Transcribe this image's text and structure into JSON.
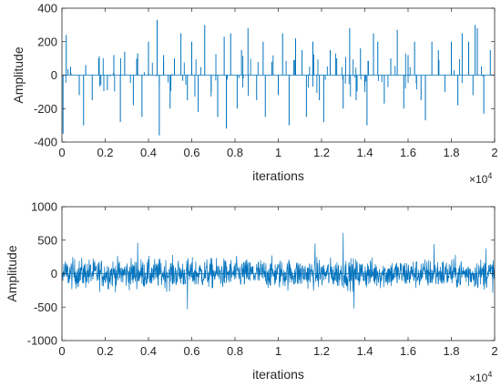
{
  "chart_data": [
    {
      "type": "line",
      "style": "stem-like signal (sparse spikes)",
      "title": "",
      "xlabel": "iterations",
      "ylabel": "Amplitude",
      "x_exponent_base": "×10",
      "x_exponent": "4",
      "xlim": [
        0,
        2
      ],
      "ylim": [
        -400,
        400
      ],
      "xticks": [
        "0",
        "0.2",
        "0.4",
        "0.6",
        "0.8",
        "1",
        "1.2",
        "1.4",
        "1.6",
        "1.8",
        "2"
      ],
      "yticks": [
        "400",
        "200",
        "0",
        "-200",
        "-400"
      ],
      "color": "#0072BD",
      "grid": false,
      "series": [
        {
          "x": [
            0.005,
            0.02,
            0.04,
            0.08,
            0.1,
            0.11,
            0.14,
            0.17,
            0.18,
            0.21,
            0.24,
            0.27,
            0.29,
            0.33,
            0.35,
            0.37,
            0.4,
            0.44,
            0.45,
            0.47,
            0.5,
            0.52,
            0.55,
            0.58,
            0.6,
            0.63,
            0.66,
            0.69,
            0.72,
            0.75,
            0.76,
            0.78,
            0.81,
            0.83,
            0.86,
            0.9,
            0.93,
            0.94,
            0.97,
            1.0,
            1.02,
            1.05,
            1.08,
            1.11,
            1.13,
            1.16,
            1.19,
            1.21,
            1.24,
            1.27,
            1.3,
            1.33,
            1.36,
            1.38,
            1.41,
            1.44,
            1.46,
            1.49,
            1.52,
            1.55,
            1.58,
            1.6,
            1.63,
            1.66,
            1.68,
            1.71,
            1.74,
            1.77,
            1.8,
            1.83,
            1.85,
            1.88,
            1.9,
            1.91,
            1.92,
            1.95,
            1.98
          ],
          "y": [
            -350,
            240,
            50,
            -120,
            -300,
            60,
            -150,
            100,
            -60,
            -90,
            120,
            -280,
            140,
            -180,
            130,
            -250,
            200,
            330,
            -360,
            120,
            -200,
            100,
            250,
            -150,
            200,
            -220,
            300,
            -100,
            -250,
            230,
            -320,
            250,
            -200,
            150,
            280,
            -150,
            200,
            -250,
            80,
            -120,
            250,
            -300,
            220,
            150,
            -250,
            200,
            -150,
            -280,
            150,
            100,
            -200,
            280,
            -150,
            160,
            -300,
            250,
            200,
            -170,
            100,
            270,
            -200,
            120,
            200,
            -150,
            -270,
            200,
            150,
            -100,
            200,
            -180,
            250,
            200,
            -120,
            300,
            280,
            -230,
            150
          ]
        }
      ]
    },
    {
      "type": "line",
      "style": "dense noise signal",
      "title": "",
      "xlabel": "iterations",
      "ylabel": "Amplitude",
      "x_exponent_base": "×10",
      "x_exponent": "4",
      "xlim": [
        0,
        2
      ],
      "ylim": [
        -1000,
        1000
      ],
      "xticks": [
        "0",
        "0.2",
        "0.4",
        "0.6",
        "0.8",
        "1",
        "1.2",
        "1.4",
        "1.6",
        "1.8",
        "2"
      ],
      "yticks": [
        "1000",
        "500",
        "0",
        "-500",
        "-1000"
      ],
      "color": "#0072BD",
      "grid": false,
      "series": [
        {
          "x_range": [
            0,
            2
          ],
          "y_approx_range": [
            -530,
            610
          ],
          "typical_peak_to_peak": [
            -300,
            300
          ],
          "notable_peaks": [
            {
              "x": 0.35,
              "y": 460
            },
            {
              "x": 0.58,
              "y": -530
            },
            {
              "x": 1.17,
              "y": 450
            },
            {
              "x": 1.3,
              "y": 610
            },
            {
              "x": 1.35,
              "y": -520
            },
            {
              "x": 1.72,
              "y": 440
            },
            {
              "x": 1.96,
              "y": 380
            }
          ]
        }
      ]
    }
  ]
}
